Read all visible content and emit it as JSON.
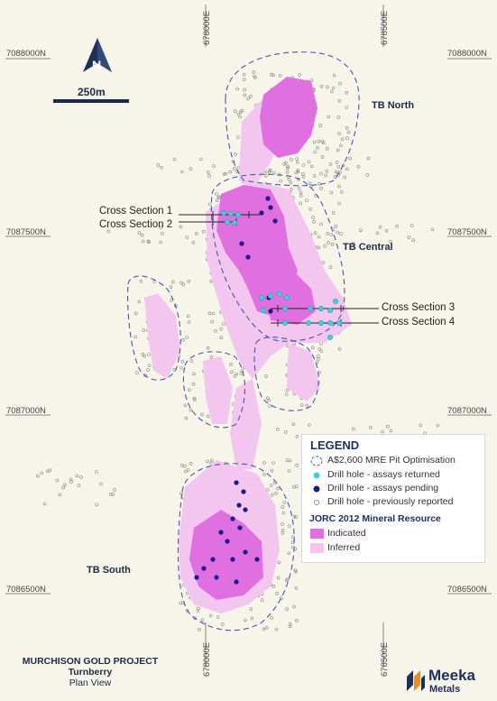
{
  "map": {
    "north_label": "N",
    "scale_label": "250m",
    "coords": {
      "left_7088000": "7088000N",
      "right_7088000": "7088000N",
      "left_7087500": "7087500N",
      "right_7087500": "7087500N",
      "left_7087000": "7087000N",
      "right_7087000": "7087000N",
      "left_7086500": "7086500N",
      "right_7086500": "7086500N",
      "top_678000": "678000E",
      "top_678500": "678500E",
      "bottom_678000": "678000E",
      "bottom_678500": "678500E"
    },
    "areas": {
      "north": "TB North",
      "central": "TB Central",
      "south": "TB South"
    },
    "cross_sections": {
      "cs1": "Cross Section 1",
      "cs2": "Cross Section 2",
      "cs3": "Cross Section 3",
      "cs4": "Cross Section 4"
    },
    "colors": {
      "background": "#f7f4ea",
      "indicated": "#e070e0",
      "inferred": "#f3c6f0",
      "pit_outline": "#4a56a8",
      "assays_returned": "#3fd0d8",
      "assays_pending": "#1a1a8c",
      "previous": "#888888",
      "navy": "#1f2f5c"
    }
  },
  "legend": {
    "title": "LEGEND",
    "pit": "A$2,600 MRE Pit Optimisation",
    "returned": "Drill hole - assays returned",
    "pending": "Drill hole - assays pending",
    "previous": "Drill hole - previously reported",
    "resource_title": "JORC 2012 Mineral Resource",
    "indicated": "Indicated",
    "inferred": "Inferred"
  },
  "title_block": {
    "project": "MURCHISON GOLD PROJECT",
    "deposit": "Turnberry",
    "view": "Plan View"
  },
  "logo": {
    "line1": "Meeka",
    "line2": "Metals"
  }
}
